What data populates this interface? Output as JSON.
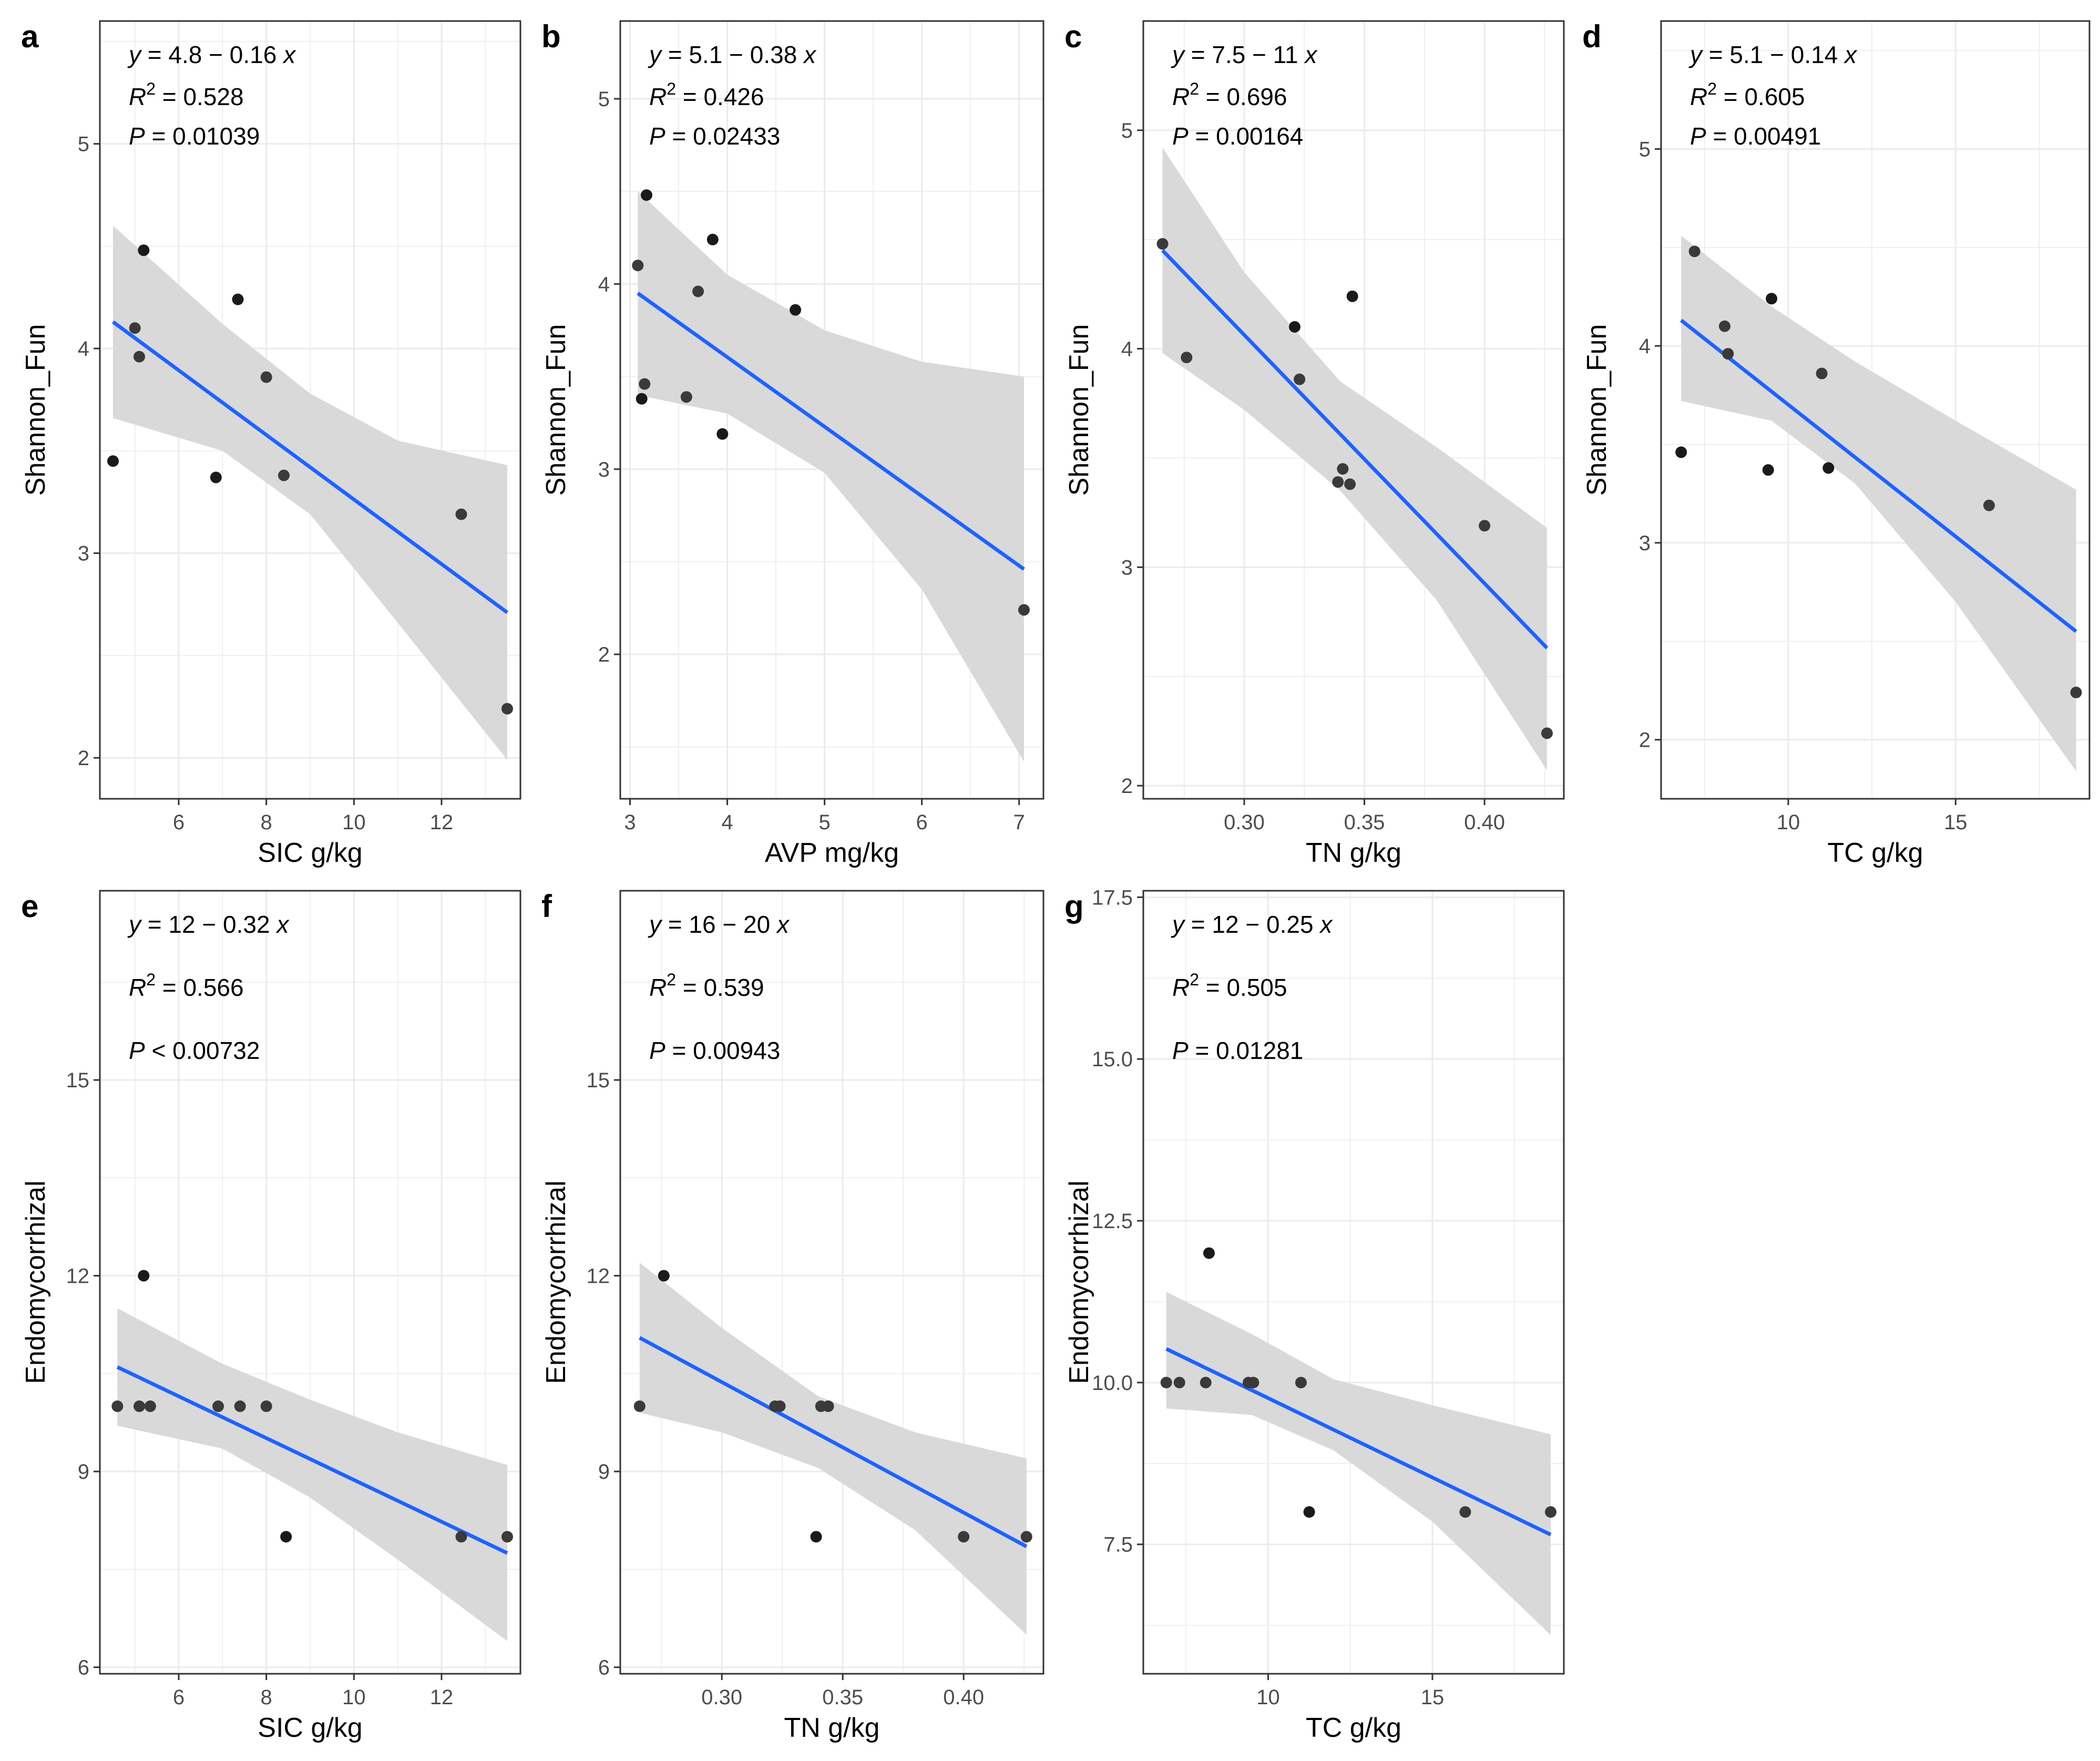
{
  "figure": {
    "background": "#ffffff"
  },
  "style": {
    "line_color": "#1f62ff",
    "band_color": "#d9d9d9",
    "point_color": "#1a1a1a",
    "grid_color": "#ebebeb"
  },
  "chart_data": [
    {
      "id": "a",
      "panel_label": "a",
      "type": "scatter",
      "xlabel": "SIC g/kg",
      "ylabel": "Shannon_Fun",
      "xlim": [
        4.2,
        13.8
      ],
      "ylim": [
        1.8,
        5.6
      ],
      "xticks": [
        6,
        8,
        10,
        12
      ],
      "xtick_labels": [
        "6",
        "8",
        "10",
        "12"
      ],
      "yticks": [
        2,
        3,
        4,
        5
      ],
      "ytick_labels": [
        "2",
        "3",
        "4",
        "5"
      ],
      "x": [
        4.5,
        5.0,
        5.1,
        5.2,
        6.85,
        7.35,
        8.0,
        8.4,
        12.45,
        13.5
      ],
      "y": [
        3.45,
        4.1,
        3.96,
        4.48,
        3.37,
        4.24,
        3.86,
        3.38,
        3.19,
        2.24
      ],
      "fit": {
        "x0": 4.5,
        "y0": 4.13,
        "x1": 13.5,
        "y1": 2.71
      },
      "ci": {
        "x": [
          4.5,
          7.0,
          9.0,
          11.0,
          13.5
        ],
        "upper": [
          4.6,
          4.12,
          3.78,
          3.55,
          3.43
        ],
        "lower": [
          3.66,
          3.5,
          3.19,
          2.66,
          1.99
        ]
      },
      "annotations": [
        {
          "var": "y",
          "rest": " = 4.8 − 0.16 ",
          "tail": "x"
        },
        {
          "var": "R",
          "sup": "2",
          "rest": " = 0.528"
        },
        {
          "var": "P",
          "rest": " = 0.01039"
        }
      ]
    },
    {
      "id": "b",
      "panel_label": "b",
      "type": "scatter",
      "xlabel": "AVP mg/kg",
      "ylabel": "Shannon_Fun",
      "xlim": [
        2.9,
        7.25
      ],
      "ylim": [
        1.22,
        5.42
      ],
      "xticks": [
        3,
        4,
        5,
        6,
        7
      ],
      "xtick_labels": [
        "3",
        "4",
        "5",
        "6",
        "7"
      ],
      "yticks": [
        2,
        3,
        4,
        5
      ],
      "ytick_labels": [
        "2",
        "3",
        "4",
        "5"
      ],
      "x": [
        3.08,
        3.12,
        3.15,
        3.17,
        3.58,
        3.7,
        3.85,
        3.95,
        4.7,
        7.05
      ],
      "y": [
        4.1,
        3.38,
        3.46,
        4.48,
        3.39,
        3.96,
        4.24,
        3.19,
        3.86,
        2.24
      ],
      "fit": {
        "x0": 3.08,
        "y0": 3.95,
        "x1": 7.05,
        "y1": 2.46
      },
      "ci": {
        "x": [
          3.08,
          4.0,
          5.0,
          6.0,
          7.05
        ],
        "upper": [
          4.5,
          4.05,
          3.75,
          3.58,
          3.5
        ],
        "lower": [
          3.4,
          3.3,
          2.98,
          2.35,
          1.42
        ]
      },
      "annotations": [
        {
          "var": "y",
          "rest": " = 5.1 − 0.38 ",
          "tail": "x"
        },
        {
          "var": "R",
          "sup": "2",
          "rest": " = 0.426"
        },
        {
          "var": "P",
          "rest": " = 0.02433"
        }
      ]
    },
    {
      "id": "c",
      "panel_label": "c",
      "type": "scatter",
      "xlabel": "TN g/kg",
      "ylabel": "Shannon_Fun",
      "xlim": [
        0.258,
        0.433
      ],
      "ylim": [
        1.94,
        5.5
      ],
      "xticks": [
        0.3,
        0.35,
        0.4
      ],
      "xtick_labels": [
        "0.30",
        "0.35",
        "0.40"
      ],
      "yticks": [
        2,
        3,
        4,
        5
      ],
      "ytick_labels": [
        "2",
        "3",
        "4",
        "5"
      ],
      "x": [
        0.266,
        0.276,
        0.321,
        0.323,
        0.339,
        0.341,
        0.344,
        0.345,
        0.4,
        0.426
      ],
      "y": [
        4.48,
        3.96,
        4.1,
        3.86,
        3.39,
        3.45,
        3.38,
        4.24,
        3.19,
        2.24
      ],
      "fit": {
        "x0": 0.266,
        "y0": 4.45,
        "x1": 0.426,
        "y1": 2.63
      },
      "ci": {
        "x": [
          0.266,
          0.3,
          0.34,
          0.38,
          0.426
        ],
        "upper": [
          4.92,
          4.35,
          3.85,
          3.55,
          3.18
        ],
        "lower": [
          3.98,
          3.72,
          3.35,
          2.85,
          2.07
        ]
      },
      "annotations": [
        {
          "var": "y",
          "rest": " = 7.5 − 11 ",
          "tail": "x"
        },
        {
          "var": "R",
          "sup": "2",
          "rest": " = 0.696"
        },
        {
          "var": "P",
          "rest": " = 0.00164"
        }
      ]
    },
    {
      "id": "d",
      "panel_label": "d",
      "type": "scatter",
      "xlabel": "TC g/kg",
      "ylabel": "Shannon_Fun",
      "xlim": [
        6.2,
        19.0
      ],
      "ylim": [
        1.7,
        5.65
      ],
      "xticks": [
        10,
        15
      ],
      "xtick_labels": [
        "10",
        "15"
      ],
      "yticks": [
        2,
        3,
        4,
        5
      ],
      "ytick_labels": [
        "2",
        "3",
        "4",
        "5"
      ],
      "x": [
        6.8,
        7.2,
        8.1,
        8.2,
        9.4,
        9.5,
        11.0,
        11.2,
        16.0,
        18.6
      ],
      "y": [
        3.46,
        4.48,
        4.1,
        3.96,
        3.37,
        4.24,
        3.86,
        3.38,
        3.19,
        2.24
      ],
      "fit": {
        "x0": 6.8,
        "y0": 4.13,
        "x1": 18.6,
        "y1": 2.55
      },
      "ci": {
        "x": [
          6.8,
          9.5,
          12.0,
          15.0,
          18.6
        ],
        "upper": [
          4.56,
          4.2,
          3.92,
          3.62,
          3.27
        ],
        "lower": [
          3.72,
          3.62,
          3.3,
          2.7,
          1.84
        ]
      },
      "annotations": [
        {
          "var": "y",
          "rest": " = 5.1 − 0.14 ",
          "tail": "x"
        },
        {
          "var": "R",
          "sup": "2",
          "rest": " = 0.605"
        },
        {
          "var": "P",
          "rest": " = 0.00491"
        }
      ]
    },
    {
      "id": "e",
      "panel_label": "e",
      "type": "scatter",
      "xlabel": "SIC g/kg",
      "ylabel": "Endomycorrhizal",
      "xlim": [
        4.2,
        13.8
      ],
      "ylim": [
        5.9,
        17.9
      ],
      "xticks": [
        6,
        8,
        10,
        12
      ],
      "xtick_labels": [
        "6",
        "8",
        "10",
        "12"
      ],
      "yticks": [
        6,
        9,
        12,
        15
      ],
      "ytick_labels": [
        "6",
        "9",
        "12",
        "15"
      ],
      "x": [
        4.6,
        5.1,
        5.2,
        5.35,
        6.9,
        7.4,
        8.0,
        8.45,
        12.45,
        13.5
      ],
      "y": [
        10,
        10,
        12,
        10,
        10,
        10,
        10,
        8,
        8,
        8
      ],
      "fit": {
        "x0": 4.6,
        "y0": 10.6,
        "x1": 13.5,
        "y1": 7.75
      },
      "ci": {
        "x": [
          4.6,
          7.0,
          9.0,
          11.0,
          13.5
        ],
        "upper": [
          11.5,
          10.65,
          10.1,
          9.6,
          9.1
        ],
        "lower": [
          9.7,
          9.35,
          8.6,
          7.65,
          6.4
        ]
      },
      "annotations": [
        {
          "var": "y",
          "rest": " = 12 − 0.32 ",
          "tail": "x"
        },
        {
          "var": "R",
          "sup": "2",
          "rest": " = 0.566"
        },
        {
          "var": "P",
          "rest": " < 0.00732"
        }
      ]
    },
    {
      "id": "f",
      "panel_label": "f",
      "type": "scatter",
      "xlabel": "TN g/kg",
      "ylabel": "Endomycorrhizal",
      "xlim": [
        0.258,
        0.433
      ],
      "ylim": [
        5.9,
        17.9
      ],
      "xticks": [
        0.3,
        0.35,
        0.4
      ],
      "xtick_labels": [
        "0.30",
        "0.35",
        "0.40"
      ],
      "yticks": [
        6,
        9,
        12,
        15
      ],
      "ytick_labels": [
        "6",
        "9",
        "12",
        "15"
      ],
      "x": [
        0.266,
        0.276,
        0.322,
        0.324,
        0.339,
        0.341,
        0.344,
        0.4,
        0.426
      ],
      "y": [
        10,
        12,
        10,
        10,
        8,
        10,
        10,
        8,
        8
      ],
      "fit": {
        "x0": 0.266,
        "y0": 11.05,
        "x1": 0.426,
        "y1": 7.85
      },
      "ci": {
        "x": [
          0.266,
          0.3,
          0.34,
          0.38,
          0.426
        ],
        "upper": [
          12.2,
          11.2,
          10.15,
          9.6,
          9.2
        ],
        "lower": [
          9.9,
          9.6,
          9.05,
          8.1,
          6.5
        ]
      },
      "annotations": [
        {
          "var": "y",
          "rest": " = 16 − 20 ",
          "tail": "x"
        },
        {
          "var": "R",
          "sup": "2",
          "rest": " = 0.539"
        },
        {
          "var": "P",
          "rest": " = 0.00943"
        }
      ]
    },
    {
      "id": "g",
      "panel_label": "g",
      "type": "scatter",
      "xlabel": "TC g/kg",
      "ylabel": "Endomycorrhizal",
      "xlim": [
        6.2,
        19.0
      ],
      "ylim": [
        5.5,
        17.6
      ],
      "xticks": [
        10,
        15
      ],
      "xtick_labels": [
        "10",
        "15"
      ],
      "yticks": [
        7.5,
        10,
        12.5,
        15,
        17.5
      ],
      "ytick_labels": [
        "7.5",
        "10.0",
        "12.5",
        "15.0",
        "17.5"
      ],
      "x": [
        6.9,
        7.3,
        8.1,
        8.2,
        9.4,
        9.55,
        11.0,
        11.25,
        16.0,
        18.6
      ],
      "y": [
        10,
        10,
        10,
        12,
        10,
        10,
        10,
        8,
        8,
        8
      ],
      "fit": {
        "x0": 6.9,
        "y0": 10.52,
        "x1": 18.6,
        "y1": 7.65
      },
      "ci": {
        "x": [
          6.9,
          9.5,
          12.0,
          15.0,
          18.6
        ],
        "upper": [
          11.4,
          10.75,
          10.05,
          9.65,
          9.2
        ],
        "lower": [
          9.6,
          9.5,
          8.95,
          7.85,
          6.1
        ]
      },
      "annotations": [
        {
          "var": "y",
          "rest": " = 12 − 0.25 ",
          "tail": "x"
        },
        {
          "var": "R",
          "sup": "2",
          "rest": " = 0.505"
        },
        {
          "var": "P",
          "rest": " = 0.01281"
        }
      ]
    }
  ]
}
